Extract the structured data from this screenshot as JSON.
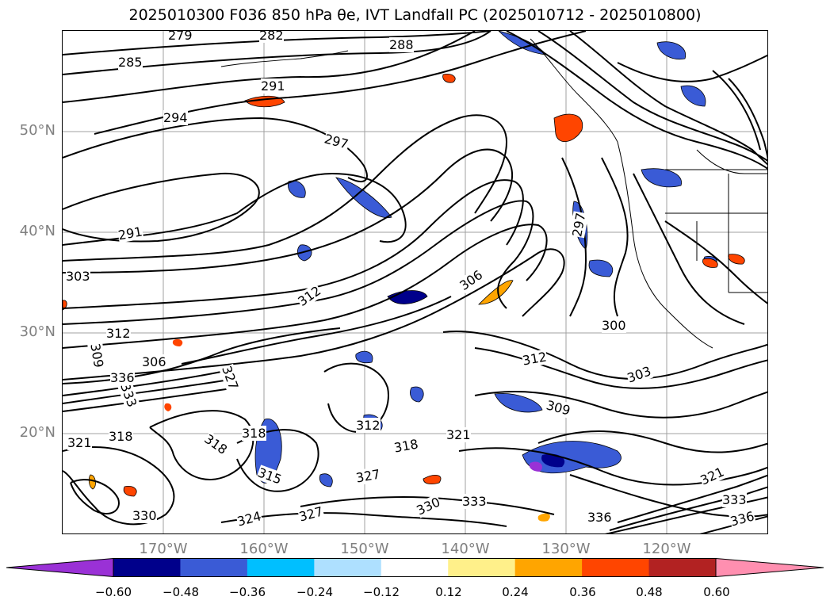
{
  "title": "2025010300 F036 850 hPa θe, IVT Landfall PC (2025010712 - 2025010800)",
  "lat_labels": [
    "50°N",
    "40°N",
    "30°N",
    "20°N"
  ],
  "lon_labels": [
    "170°W",
    "160°W",
    "150°W",
    "140°W",
    "130°W",
    "120°W"
  ],
  "contour_labels": [
    "279",
    "282",
    "285",
    "288",
    "291",
    "294",
    "297",
    "291",
    "297",
    "303",
    "306",
    "312",
    "312",
    "309",
    "306",
    "300",
    "312",
    "303",
    "327",
    "333",
    "336",
    "321",
    "318",
    "309",
    "318",
    "312",
    "318",
    "321",
    "315",
    "318",
    "327",
    "330",
    "333",
    "336",
    "321",
    "330",
    "324",
    "327",
    "333",
    "336"
  ],
  "colorbar": {
    "colors": [
      "#9a31d6",
      "#00008b",
      "#3a5bd6",
      "#00bfff",
      "#aee0ff",
      "#ffffff",
      "#fff08a",
      "#ffa500",
      "#ff4500",
      "#b22222",
      "#ff8fb0"
    ],
    "tick_labels": [
      "−0.60",
      "−0.48",
      "−0.36",
      "−0.24",
      "−0.12",
      "0.12",
      "0.24",
      "0.36",
      "0.48",
      "0.60"
    ]
  }
}
